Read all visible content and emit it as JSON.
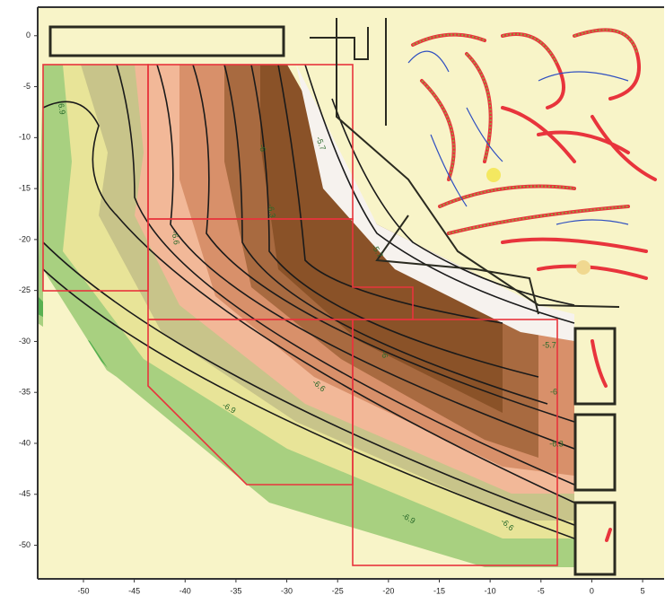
{
  "chart_data": {
    "type": "contour",
    "xlim": [
      -54.5,
      7.2
    ],
    "ylim": [
      -53.3,
      2.8
    ],
    "xticks": [
      -50,
      -45,
      -40,
      -35,
      -30,
      -25,
      -20,
      -15,
      -10,
      -5,
      0,
      5
    ],
    "yticks": [
      0,
      -5,
      -10,
      -15,
      -20,
      -25,
      -30,
      -35,
      -40,
      -45,
      -50
    ],
    "contour_labels": [
      "-6.9",
      "-6.6",
      "-6",
      "-6.3",
      "-5.7",
      "-5.7",
      "-6",
      "-6.9",
      "-6.6",
      "-5.7",
      "-6",
      "-6.3",
      "-6.9",
      "-6.6"
    ]
  }
}
